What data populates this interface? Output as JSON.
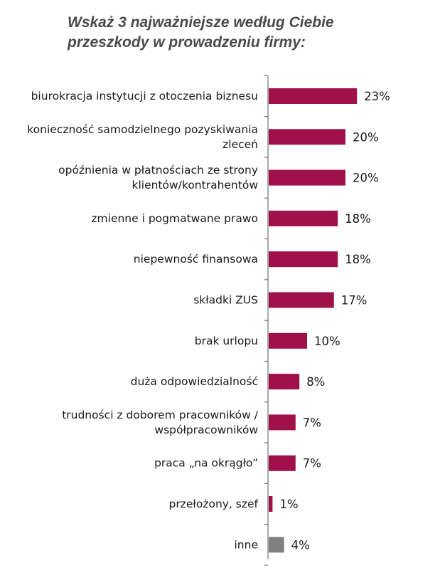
{
  "colors": {
    "primary": "#a0104a",
    "other": "#808080",
    "axis": "#555555"
  },
  "chart_data": {
    "type": "bar",
    "orientation": "horizontal",
    "title_lines": [
      "Wskaż 3 najważniejsze według Ciebie",
      "przeszkody w prowadzeniu firmy:"
    ],
    "categories": [
      [
        "biurokracja instytucji z otoczenia biznesu"
      ],
      [
        "konieczność samodzielnego pozyskiwania",
        "zleceń"
      ],
      [
        "opóźnienia w płatnościach ze strony",
        "klientów/kontrahentów"
      ],
      [
        "zmienne i pogmatwane prawo"
      ],
      [
        "niepewność finansowa"
      ],
      [
        "składki ZUS"
      ],
      [
        "brak urlopu"
      ],
      [
        "duża odpowiedzialność"
      ],
      [
        "trudności z doborem pracowników /",
        "współpracowników"
      ],
      [
        "praca „na okrągło”"
      ],
      [
        "przełożony, szef"
      ],
      [
        "inne"
      ]
    ],
    "values": [
      23,
      20,
      20,
      18,
      18,
      17,
      10,
      8,
      7,
      7,
      1,
      4
    ],
    "value_labels": [
      "23%",
      "20%",
      "20%",
      "18%",
      "18%",
      "17%",
      "10%",
      "8%",
      "7%",
      "7%",
      "1%",
      "4%"
    ],
    "highlight": [
      false,
      false,
      false,
      false,
      false,
      false,
      false,
      false,
      false,
      false,
      false,
      true
    ],
    "unit": "%",
    "xlim": [
      0,
      23
    ]
  }
}
